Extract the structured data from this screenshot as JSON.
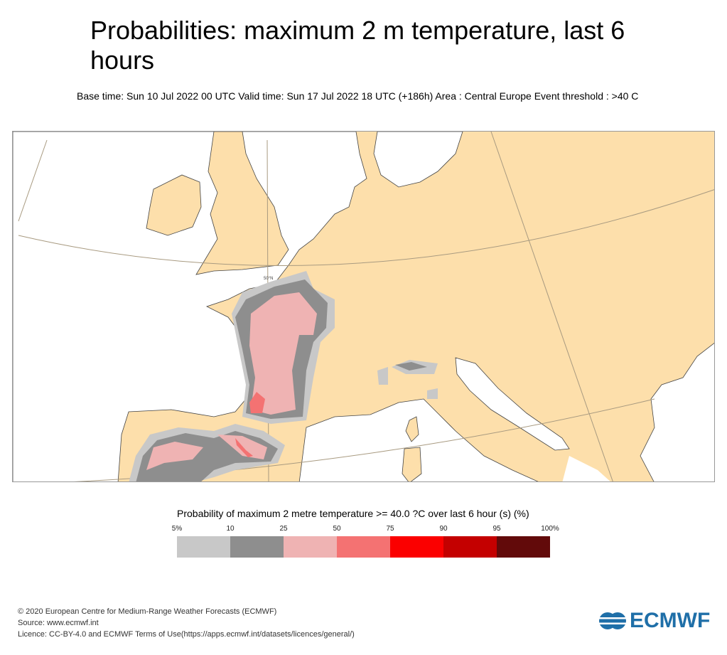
{
  "title": "Probabilities: maximum 2 m temperature, last 6 hours",
  "subtitle": "Base time: Sun 10 Jul 2022 00 UTC Valid time: Sun 17 Jul 2022 18 UTC (+186h) Area : Central Europe Event threshold : >40 C",
  "map": {
    "latitude_label": "50°N",
    "land_color": "#fddfab",
    "sea_color": "#ffffff"
  },
  "legend": {
    "title": "Probability of maximum 2 metre temperature >= 40.0 ?C over last 6 hour (s) (%)",
    "ticks": [
      "5%",
      "10",
      "25",
      "50",
      "75",
      "90",
      "95",
      "100%"
    ],
    "colors": [
      "#c8c8c8",
      "#8e8e8e",
      "#efb3b3",
      "#f47272",
      "#fb0000",
      "#c40000",
      "#620a0a"
    ]
  },
  "footer": {
    "copyright": "© 2020 European Centre for Medium-Range Weather Forecasts (ECMWF)",
    "source": "Source: www.ecmwf.int",
    "licence": "Licence: CC-BY-4.0 and ECMWF Terms of Use(https://apps.ecmwf.int/datasets/licences/general/)"
  },
  "logo": {
    "text": "ECMWF"
  }
}
